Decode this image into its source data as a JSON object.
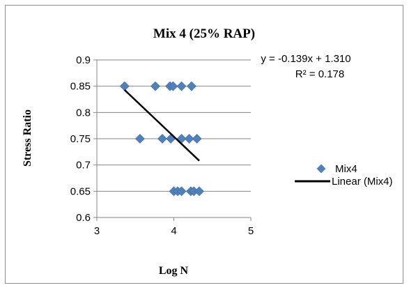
{
  "chart_data": {
    "type": "scatter",
    "title": "Mix 4 (25% RAP)",
    "xlabel": "Log N",
    "ylabel": "Stress Ratio",
    "xlim": [
      3,
      5
    ],
    "ylim": [
      0.6,
      0.9
    ],
    "xticks": [
      "3",
      "4",
      "5"
    ],
    "yticks": [
      "0.6",
      "0.65",
      "0.7",
      "0.75",
      "0.8",
      "0.85",
      "0.9"
    ],
    "grid": "horizontal",
    "legend_position": "right",
    "colors": {
      "marker": "#4f81bd",
      "trend": "#000000",
      "grid": "#868686"
    },
    "series": [
      {
        "name": "Mix4",
        "points": [
          {
            "x": 3.36,
            "y": 0.85
          },
          {
            "x": 3.76,
            "y": 0.85
          },
          {
            "x": 3.95,
            "y": 0.85
          },
          {
            "x": 3.99,
            "y": 0.85
          },
          {
            "x": 4.1,
            "y": 0.85
          },
          {
            "x": 4.23,
            "y": 0.85
          },
          {
            "x": 3.56,
            "y": 0.75
          },
          {
            "x": 3.85,
            "y": 0.75
          },
          {
            "x": 3.96,
            "y": 0.75
          },
          {
            "x": 4.1,
            "y": 0.75
          },
          {
            "x": 4.2,
            "y": 0.75
          },
          {
            "x": 4.3,
            "y": 0.75
          },
          {
            "x": 4.0,
            "y": 0.65
          },
          {
            "x": 4.05,
            "y": 0.65
          },
          {
            "x": 4.1,
            "y": 0.65
          },
          {
            "x": 4.22,
            "y": 0.65
          },
          {
            "x": 4.26,
            "y": 0.65
          },
          {
            "x": 4.33,
            "y": 0.65
          }
        ]
      }
    ],
    "trendline": {
      "name": "Linear (Mix4)",
      "x_range": [
        3.36,
        4.33
      ],
      "slope": -0.139,
      "intercept": 1.31,
      "equation": "y = -0.139x + 1.310",
      "r_squared": "R² = 0.178"
    }
  }
}
